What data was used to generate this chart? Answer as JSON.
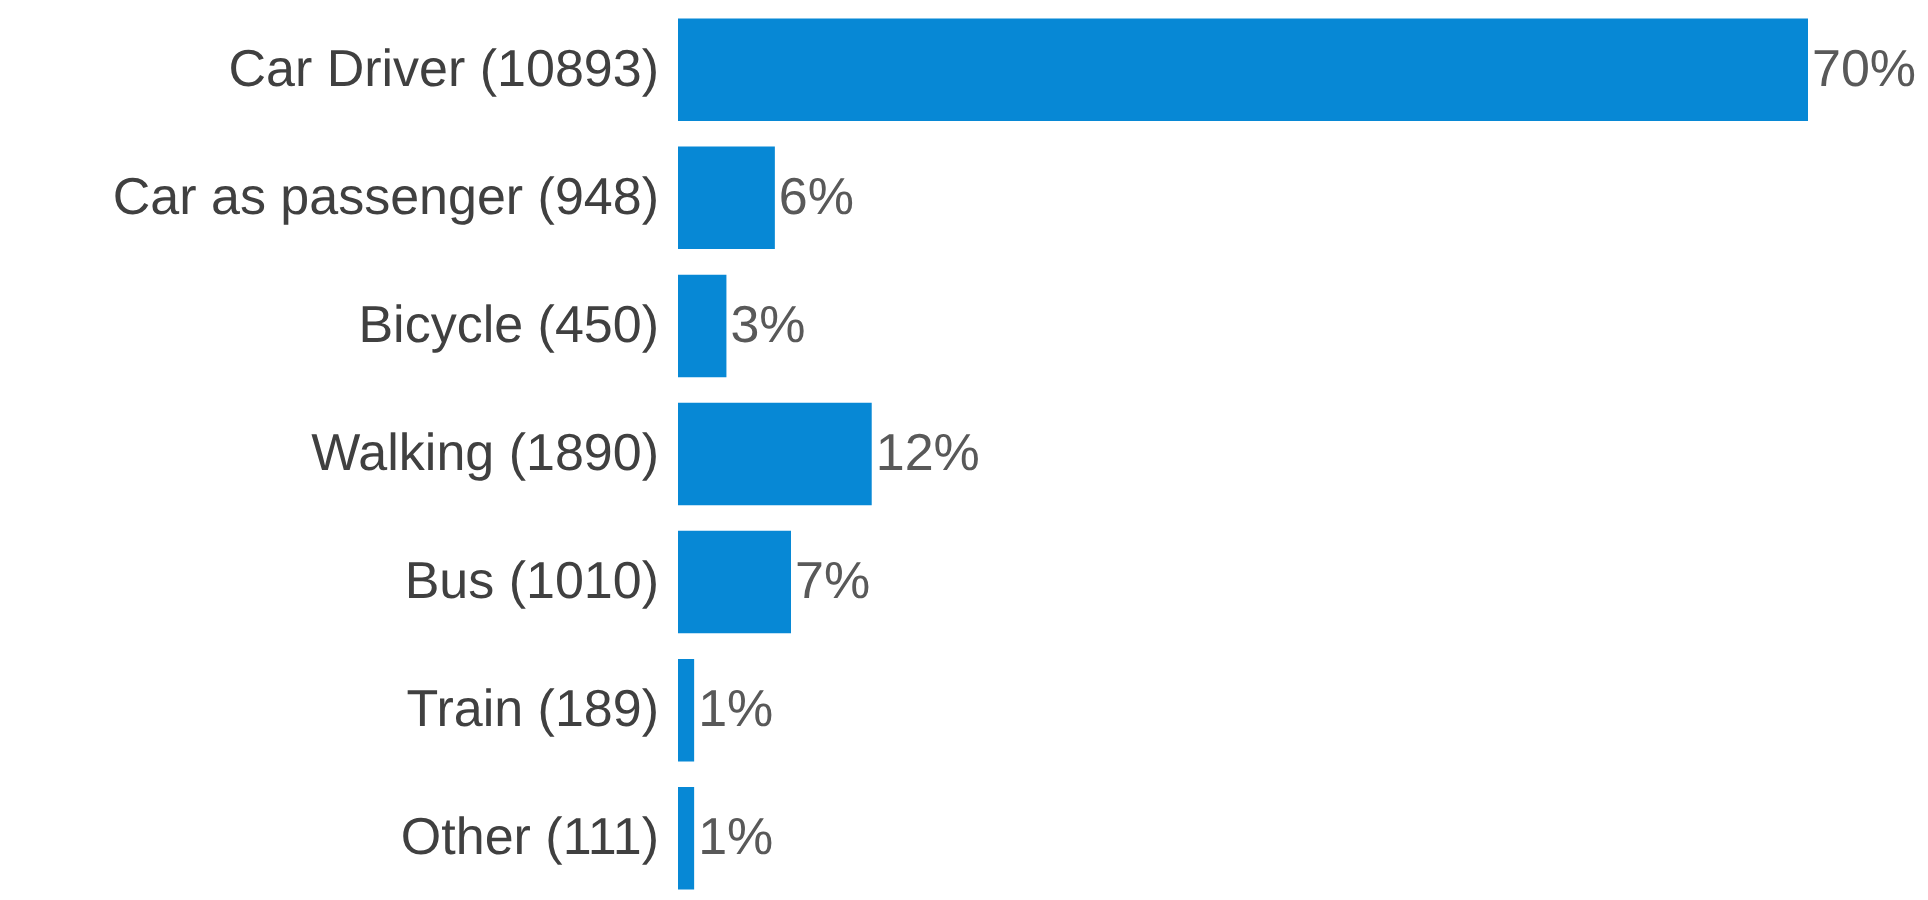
{
  "chart_data": {
    "type": "bar",
    "orientation": "horizontal",
    "categories": [
      "Car Driver (10893)",
      "Car as passenger (948)",
      "Bicycle (450)",
      "Walking  (1890)",
      "Bus (1010)",
      "Train  (189)",
      "Other  (111)"
    ],
    "values": [
      70,
      6,
      3,
      12,
      7,
      1,
      1
    ],
    "value_labels": [
      "70%",
      "6%",
      "3%",
      "12%",
      "7%",
      "1%",
      "1%"
    ],
    "color": "#0788d5"
  }
}
